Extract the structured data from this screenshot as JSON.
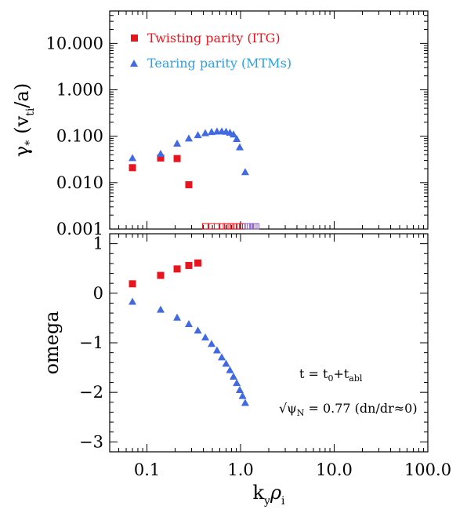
{
  "chart_data": [
    {
      "type": "scatter",
      "panel": "top",
      "xscale": "log",
      "yscale": "log",
      "xlim": [
        0.04,
        100
      ],
      "ylim": [
        0.001,
        50
      ],
      "ylabel": {
        "main": "γ",
        "star": "*",
        "open": "(v",
        "sub": "ti",
        "close": "/a)"
      },
      "yticks": [
        {
          "value": 10,
          "label": "10.000"
        },
        {
          "value": 1,
          "label": "1.000"
        },
        {
          "value": 0.1,
          "label": "0.100"
        },
        {
          "value": 0.01,
          "label": "0.010"
        },
        {
          "value": 0.001,
          "label": "0.001"
        }
      ],
      "legend": {
        "position": "top-left",
        "entries": [
          {
            "label": "Twisting parity (ITG)",
            "color": "#e8141e",
            "marker": "square"
          },
          {
            "label": "Tearing parity (MTMs)",
            "color": "#2a9fe6",
            "marker": "triangle"
          }
        ]
      },
      "series": [
        {
          "name": "Twisting parity (ITG)",
          "color": "#e8141e",
          "marker": "square",
          "x": [
            0.07,
            0.14,
            0.21,
            0.28
          ],
          "y": [
            0.021,
            0.034,
            0.033,
            0.009
          ]
        },
        {
          "name": "Tearing parity (MTMs)",
          "color": "#4169e1",
          "marker": "triangle",
          "x": [
            0.07,
            0.14,
            0.21,
            0.28,
            0.35,
            0.42,
            0.49,
            0.56,
            0.63,
            0.7,
            0.77,
            0.84,
            0.91,
            0.98,
            1.12
          ],
          "y": [
            0.034,
            0.042,
            0.07,
            0.09,
            0.106,
            0.117,
            0.124,
            0.127,
            0.128,
            0.126,
            0.12,
            0.11,
            0.088,
            0.058,
            0.017
          ]
        }
      ],
      "stable_markers": {
        "red_x": [
          0.42,
          0.49,
          0.56,
          0.63,
          0.7,
          0.77,
          0.84,
          0.91,
          0.98,
          1.05
        ],
        "blue_x": [
          1.19,
          1.26,
          1.33,
          1.4,
          1.47
        ],
        "red_color": "#e8141e",
        "blue_color": "#8b5fc8"
      }
    },
    {
      "type": "scatter",
      "panel": "bottom",
      "xscale": "log",
      "xlim": [
        0.04,
        100
      ],
      "ylim": [
        -3.2,
        1.2
      ],
      "ylabel": "omega",
      "xlabel": {
        "k": "k",
        "ksub": "y",
        "rho": "ρ",
        "rsub": "i"
      },
      "xticks": [
        {
          "value": 0.1,
          "label": "0.1"
        },
        {
          "value": 1,
          "label": "1.0"
        },
        {
          "value": 10,
          "label": "10.0"
        },
        {
          "value": 100,
          "label": "100.0"
        }
      ],
      "yticks": [
        {
          "value": 1,
          "label": "1"
        },
        {
          "value": 0,
          "label": "0"
        },
        {
          "value": -1,
          "label": "−1"
        },
        {
          "value": -2,
          "label": "−2"
        },
        {
          "value": -3,
          "label": "−3"
        }
      ],
      "series": [
        {
          "name": "Twisting parity (ITG)",
          "color": "#e8141e",
          "marker": "square",
          "x": [
            0.07,
            0.14,
            0.21,
            0.28,
            0.35
          ],
          "y": [
            0.19,
            0.36,
            0.49,
            0.56,
            0.61
          ]
        },
        {
          "name": "Tearing parity (MTMs)",
          "color": "#4169e1",
          "marker": "triangle",
          "x": [
            0.07,
            0.14,
            0.21,
            0.28,
            0.35,
            0.42,
            0.49,
            0.56,
            0.63,
            0.7,
            0.77,
            0.84,
            0.91,
            0.98,
            1.05,
            1.12
          ],
          "y": [
            -0.17,
            -0.33,
            -0.49,
            -0.62,
            -0.75,
            -0.89,
            -1.02,
            -1.15,
            -1.29,
            -1.42,
            -1.55,
            -1.68,
            -1.81,
            -1.95,
            -2.07,
            -2.21
          ]
        }
      ],
      "annotations": {
        "time": {
          "t": "t = t",
          "sub0": "0",
          "plus": "+t",
          "subabl": "abl"
        },
        "psi": {
          "sqrt": "√ψ",
          "sub": "N",
          "rest": " = 0.77 (dn/dr≈0)"
        }
      }
    }
  ]
}
